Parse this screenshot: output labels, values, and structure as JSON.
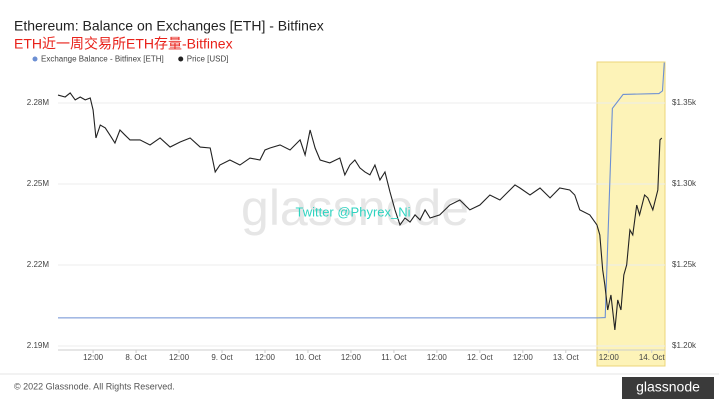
{
  "chart_data": {
    "type": "line",
    "title": "Ethereum: Balance on Exchanges [ETH] - Bitfinex",
    "subtitle": "ETH近一周交易所ETH存量-Bitfinex",
    "annotation": "Twitter @Phyrex_Ni",
    "watermark": "glassnode",
    "footer": "© 2022 Glassnode. All Rights Reserved.",
    "logo": "glassnode",
    "grid": true,
    "xlim": [
      2.2,
      171.7
    ],
    "xticks": [
      {
        "value": 12,
        "label": "12:00"
      },
      {
        "value": 24,
        "label": "8. Oct"
      },
      {
        "value": 36,
        "label": "12:00"
      },
      {
        "value": 48,
        "label": "9. Oct"
      },
      {
        "value": 60,
        "label": "12:00"
      },
      {
        "value": 72,
        "label": "10. Oct"
      },
      {
        "value": 84,
        "label": "12:00"
      },
      {
        "value": 96,
        "label": "11. Oct"
      },
      {
        "value": 108,
        "label": "12:00"
      },
      {
        "value": 120,
        "label": "12. Oct"
      },
      {
        "value": 132,
        "label": "12:00"
      },
      {
        "value": 144,
        "label": "13. Oct"
      },
      {
        "value": 156,
        "label": "12:00"
      },
      {
        "value": 168,
        "label": "14. Oct"
      }
    ],
    "ylim": [
      2188500,
      2295200
    ],
    "yticks": [
      {
        "value": 2190000,
        "label": "2.19M"
      },
      {
        "value": 2220000,
        "label": "2.22M"
      },
      {
        "value": 2250000,
        "label": "2.25M"
      },
      {
        "value": 2280000,
        "label": "2.28M"
      }
    ],
    "y2lim": [
      1197.5,
      1375.3
    ],
    "y2ticks": [
      {
        "value": 1200,
        "label": "$1.20k"
      },
      {
        "value": 1250,
        "label": "$1.25k"
      },
      {
        "value": 1300,
        "label": "$1.30k"
      },
      {
        "value": 1350,
        "label": "$1.35k"
      }
    ],
    "series": [
      {
        "name": "Exchange Balance - Bitfinex [ETH]",
        "color": "#6c8fd3",
        "x": [
          2.2,
          153,
          155,
          157,
          160,
          170,
          171,
          171.5
        ],
        "values": [
          2200400,
          2200400,
          2200500,
          2278000,
          2283200,
          2283500,
          2284500,
          2295000
        ]
      },
      {
        "name": "Price [USD]",
        "color": "#222222",
        "axis": "y2",
        "x": [
          2.2,
          4.2,
          5.6,
          7.0,
          8.4,
          9.8,
          11.2,
          12.0,
          12.8,
          14.0,
          15.4,
          16.7,
          18.1,
          19.5,
          20.9,
          22.3,
          25.1,
          27.9,
          30.7,
          33.5,
          36.3,
          39.1,
          41.9,
          44.7,
          46.1,
          47.4,
          50.2,
          53.0,
          55.8,
          58.6,
          60.0,
          61.4,
          64.2,
          67.0,
          69.8,
          71.2,
          72.6,
          74.0,
          75.4,
          78.1,
          80.9,
          82.3,
          83.7,
          85.1,
          86.5,
          87.9,
          89.3,
          90.7,
          92.1,
          93.5,
          94.9,
          96.3,
          97.7,
          99.1,
          100.5,
          101.9,
          103.3,
          104.7,
          106.1,
          108.8,
          111.6,
          114.4,
          117.2,
          120.0,
          122.8,
          125.6,
          128.4,
          129.8,
          131.2,
          134.0,
          136.8,
          139.6,
          142.3,
          145.1,
          146.5,
          147.9,
          150.7,
          152.7,
          153.5,
          154.3,
          154.9,
          155.7,
          156.6,
          157.7,
          158.5,
          159.4,
          160.2,
          161.0,
          161.9,
          162.7,
          163.8,
          164.6,
          166.0,
          166.9,
          168.3,
          169.7,
          170.3,
          170.8
        ],
        "values": [
          1354.9,
          1353.7,
          1356.2,
          1351.9,
          1353.7,
          1351.9,
          1353.1,
          1345.7,
          1328.4,
          1336.4,
          1334.6,
          1330.2,
          1325.3,
          1333.3,
          1330.2,
          1327.2,
          1327.2,
          1324.1,
          1328.4,
          1322.8,
          1325.9,
          1328.4,
          1322.8,
          1322.2,
          1307.4,
          1311.7,
          1314.8,
          1311.7,
          1316.0,
          1314.8,
          1321.0,
          1322.2,
          1324.1,
          1321.0,
          1327.2,
          1317.9,
          1333.3,
          1322.2,
          1314.8,
          1313.0,
          1316.0,
          1305.6,
          1311.7,
          1314.8,
          1309.9,
          1307.4,
          1305.6,
          1311.7,
          1302.5,
          1307.4,
          1295.1,
          1284.0,
          1274.7,
          1279.0,
          1276.5,
          1280.9,
          1277.8,
          1284.0,
          1279.0,
          1280.9,
          1287.0,
          1290.1,
          1284.0,
          1287.0,
          1293.2,
          1290.1,
          1296.3,
          1299.4,
          1297.5,
          1293.2,
          1297.5,
          1291.4,
          1297.5,
          1296.3,
          1293.2,
          1284.0,
          1280.9,
          1274.7,
          1268.5,
          1246.9,
          1237.7,
          1222.2,
          1231.5,
          1209.9,
          1228.4,
          1222.2,
          1243.8,
          1250.0,
          1271.6,
          1268.5,
          1287.0,
          1280.9,
          1293.2,
          1291.4,
          1284.0,
          1296.3,
          1327.2,
          1328.4
        ]
      }
    ]
  }
}
